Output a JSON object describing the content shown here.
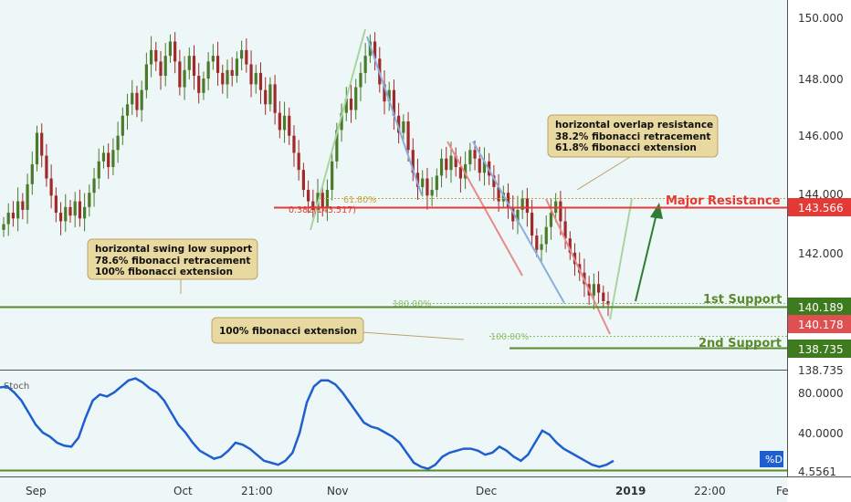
{
  "chart_data": [
    {
      "type": "candlestick",
      "instrument_price_axis": {
        "ticks": [
          "150.000",
          "148.000",
          "146.000",
          "144.000",
          "142.000",
          "138.735"
        ],
        "ylim": [
          137.9,
          150.6
        ]
      },
      "x_ticks": [
        "Sep",
        "Oct",
        "21:00",
        "Nov",
        "Dec",
        "2019",
        "22:00",
        "Fe"
      ],
      "closes": [
        143.0,
        143.4,
        143.2,
        143.8,
        143.5,
        144.4,
        145.1,
        146.2,
        145.4,
        144.6,
        144.0,
        143.4,
        143.1,
        143.6,
        143.3,
        143.8,
        143.2,
        143.6,
        144.1,
        144.6,
        145.2,
        145.5,
        145.0,
        145.6,
        146.1,
        146.8,
        147.2,
        147.6,
        147.0,
        147.7,
        148.6,
        149.1,
        148.7,
        148.2,
        148.9,
        149.4,
        148.7,
        147.8,
        148.4,
        148.9,
        148.2,
        147.6,
        148.1,
        148.7,
        148.9,
        148.3,
        147.9,
        148.4,
        148.2,
        148.8,
        149.1,
        148.6,
        147.9,
        148.3,
        147.7,
        147.2,
        147.9,
        146.9,
        146.3,
        146.8,
        146.1,
        145.5,
        144.9,
        144.2,
        143.8,
        143.5,
        144.1,
        143.6,
        144.2,
        145.2,
        146.3,
        146.9,
        147.4,
        147.0,
        147.8,
        148.3,
        148.9,
        149.4,
        148.8,
        147.9,
        147.3,
        147.7,
        146.8,
        146.2,
        146.6,
        145.6,
        144.8,
        144.3,
        144.6,
        144.0,
        144.2,
        144.7,
        145.3,
        144.9,
        145.4,
        145.0,
        144.6,
        145.1,
        145.6,
        145.3,
        144.8,
        145.2,
        144.7,
        144.3,
        143.8,
        144.1,
        143.6,
        143.1,
        143.5,
        143.9,
        143.4,
        142.6,
        142.1,
        142.3,
        142.9,
        143.4,
        143.8,
        143.1,
        142.5,
        142.0,
        141.6,
        141.3,
        140.9,
        140.5,
        140.9,
        140.6,
        140.3,
        140.189
      ],
      "overlay_lines": {
        "major_resistance": 143.566,
        "first_support": 140.189,
        "second_support": 138.735,
        "current_bid": 140.178,
        "fib_61_80_level": 143.85,
        "fib_100_upper": 140.25,
        "fib_100_lower": 139.2
      }
    },
    {
      "type": "line",
      "name": "stochastic",
      "ylim": [
        0,
        100
      ],
      "y_ticks": [
        "80.0000",
        "40.0000"
      ],
      "values": [
        85,
        86,
        80,
        72,
        60,
        48,
        40,
        36,
        30,
        27,
        26,
        35,
        55,
        72,
        78,
        76,
        80,
        86,
        92,
        94,
        90,
        84,
        80,
        72,
        60,
        48,
        40,
        30,
        22,
        18,
        14,
        16,
        22,
        30,
        28,
        24,
        18,
        12,
        10,
        8,
        12,
        20,
        40,
        70,
        86,
        92,
        92,
        88,
        80,
        70,
        60,
        50,
        46,
        44,
        40,
        36,
        30,
        20,
        10,
        6,
        4,
        8,
        16,
        20,
        22,
        24,
        24,
        22,
        18,
        20,
        26,
        22,
        16,
        12,
        18,
        30,
        42,
        38,
        30,
        24,
        20,
        16,
        12,
        8,
        6,
        8,
        12
      ]
    }
  ],
  "annotations": {
    "swing_low": [
      "horizontal swing low support",
      "78.6% fibonacci retracement",
      "100% fibonacci extension"
    ],
    "fib_ext": [
      "100% fibonacci extension"
    ],
    "overlap": [
      "horizontal overlap resistance",
      "38.2% fibonacci retracement",
      "61.8% fibonacci extension"
    ]
  },
  "levels": {
    "major_resistance_label": "Major Resistance",
    "first_support_label": "1st Support",
    "second_support_label": "2nd Support",
    "fib_6180_label": "61.80%",
    "fib_0382_label": "0.382(143.517)",
    "fib_100_a_label": "100.00%",
    "fib_100_b_label": "100.00%"
  },
  "price_tags": {
    "resistance": "143.566",
    "support1": "140.189",
    "bid": "140.178",
    "support2": "138.735"
  },
  "osc": {
    "label": "Stoch",
    "tag": "%D",
    "bottom_tag": "4.5561"
  },
  "colors": {
    "bull": "#4a7a2a",
    "bear": "#a02a2a",
    "resistance": "#e53935",
    "support": "#5a8a2a",
    "stoch": "#1e5fd0",
    "annotation_bg": "#e8d9a0",
    "fib_pink": "#e88a8a",
    "fib_blue": "#8aaee0",
    "fib_green": "#a8d4a0",
    "arrow_dark_green": "#2e7d32"
  }
}
